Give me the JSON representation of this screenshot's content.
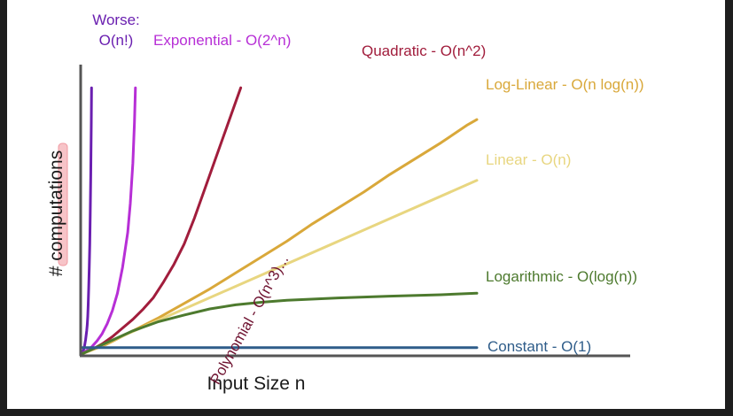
{
  "chart_data": {
    "type": "line",
    "title": "",
    "xlabel": "Input Size n",
    "ylabel": "# computations",
    "grid": false,
    "legend": "none (series labelled at line ends)",
    "series": [
      {
        "name": "Worse:\nO(n!)",
        "color": "#6a1fb0",
        "points": [
          [
            0,
            0
          ],
          [
            0.2,
            0.5
          ],
          [
            0.5,
            2
          ],
          [
            0.8,
            5
          ],
          [
            1.0,
            8
          ],
          [
            1.1,
            10
          ],
          [
            1.2,
            13
          ],
          [
            1.3,
            17
          ],
          [
            1.4,
            23
          ],
          [
            1.5,
            30
          ],
          [
            1.6,
            38
          ],
          [
            1.7,
            48
          ],
          [
            1.8,
            62
          ],
          [
            1.9,
            80
          ],
          [
            1.95,
            92
          ]
        ]
      },
      {
        "name": "Exponential - O(2^n)",
        "color": "#b72fd6",
        "points": [
          [
            0,
            0
          ],
          [
            0.5,
            0.5
          ],
          [
            1,
            1.2
          ],
          [
            2,
            2.5
          ],
          [
            3,
            4.5
          ],
          [
            4,
            7
          ],
          [
            5,
            10.5
          ],
          [
            6,
            15
          ],
          [
            7,
            21
          ],
          [
            8,
            30
          ],
          [
            9,
            42
          ],
          [
            9.5,
            52
          ],
          [
            10,
            66
          ],
          [
            10.3,
            80
          ],
          [
            10.5,
            92
          ]
        ]
      },
      {
        "name": "Quadratic - O(n^2)",
        "color": "#a11d3c",
        "points": [
          [
            0,
            0
          ],
          [
            2,
            1.5
          ],
          [
            4,
            3.5
          ],
          [
            6,
            6
          ],
          [
            8,
            9
          ],
          [
            10,
            12
          ],
          [
            12,
            15.5
          ],
          [
            14,
            19.5
          ],
          [
            16,
            25
          ],
          [
            18,
            31
          ],
          [
            20,
            38
          ],
          [
            22,
            47
          ],
          [
            24,
            57
          ],
          [
            26,
            67
          ],
          [
            28,
            77
          ],
          [
            30,
            87
          ],
          [
            31,
            92
          ]
        ]
      },
      {
        "name": "Log-Linear - O(n log(n))",
        "color": "#d9a83a",
        "points": [
          [
            0,
            0
          ],
          [
            5,
            3.5
          ],
          [
            10,
            8
          ],
          [
            15,
            12.5
          ],
          [
            20,
            17.5
          ],
          [
            25,
            22.5
          ],
          [
            30,
            28
          ],
          [
            35,
            33.5
          ],
          [
            40,
            39
          ],
          [
            45,
            45
          ],
          [
            50,
            50.5
          ],
          [
            55,
            56
          ],
          [
            60,
            62
          ],
          [
            65,
            67.5
          ],
          [
            70,
            73
          ],
          [
            75,
            79
          ],
          [
            77,
            81
          ]
        ]
      },
      {
        "name": "Linear - O(n)",
        "color": "#e8d680",
        "points": [
          [
            0,
            0
          ],
          [
            77,
            60
          ]
        ]
      },
      {
        "name": "Logarithmic - O(log(n))",
        "color": "#4d7a2e",
        "points": [
          [
            0,
            0
          ],
          [
            5,
            4
          ],
          [
            10,
            8
          ],
          [
            15,
            11.2
          ],
          [
            20,
            13.5
          ],
          [
            25,
            15.6
          ],
          [
            30,
            17
          ],
          [
            35,
            17.9
          ],
          [
            40,
            18.6
          ],
          [
            50,
            19.4
          ],
          [
            60,
            20
          ],
          [
            70,
            20.5
          ],
          [
            77,
            21
          ]
        ]
      },
      {
        "name": "Constant - O(1)",
        "color": "#2f5d8a",
        "points": [
          [
            0,
            2.2
          ],
          [
            77,
            2.2
          ]
        ]
      }
    ],
    "annotations": [
      {
        "text": "Polynomial - O(n^3)...",
        "color": "#6e1230",
        "x": 12,
        "y": 35,
        "rotation": -61
      }
    ],
    "xlim": [
      0,
      77
    ],
    "ylim": [
      0,
      100
    ],
    "ticks": "none"
  }
}
